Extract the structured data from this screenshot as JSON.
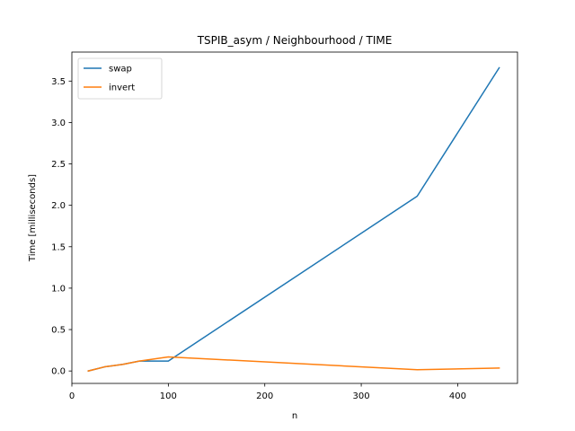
{
  "chart_data": {
    "type": "line",
    "title": "TSPIB_asym / Neighbourhood / TIME",
    "xlabel": "n",
    "ylabel": "Time [milliseconds]",
    "xlim": [
      0,
      462
    ],
    "ylim": [
      -0.15,
      3.85
    ],
    "xticks": [
      0,
      100,
      200,
      300,
      400
    ],
    "yticks": [
      0.0,
      0.5,
      1.0,
      1.5,
      2.0,
      2.5,
      3.0,
      3.5
    ],
    "xtick_labels": [
      "0",
      "100",
      "200",
      "300",
      "400"
    ],
    "ytick_labels": [
      "0.0",
      "0.5",
      "1.0",
      "1.5",
      "2.0",
      "2.5",
      "3.0",
      "3.5"
    ],
    "legend_position": "top-left",
    "grid": false,
    "x": [
      17,
      34,
      53,
      70,
      100,
      358,
      443
    ],
    "series": [
      {
        "name": "swap",
        "color": "#1f77b4",
        "values": [
          0.0,
          0.05,
          0.08,
          0.12,
          0.12,
          2.11,
          3.66
        ]
      },
      {
        "name": "invert",
        "color": "#ff7f0e",
        "values": [
          0.0,
          0.05,
          0.08,
          0.12,
          0.17,
          0.015,
          0.035
        ]
      }
    ]
  }
}
